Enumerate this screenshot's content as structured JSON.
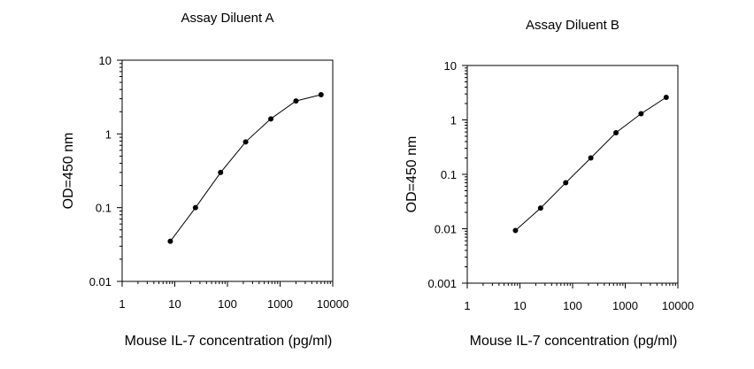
{
  "chart_data": [
    {
      "type": "line",
      "title": "Assay Diluent A",
      "xlabel": "Mouse IL-7 concentration (pg/ml)",
      "ylabel": "OD=450 nm",
      "x_scale": "log",
      "y_scale": "log",
      "xlim": [
        1,
        10000
      ],
      "ylim": [
        0.01,
        10
      ],
      "xticks": [
        1,
        10,
        100,
        1000,
        10000
      ],
      "xtick_labels": [
        "1",
        "10",
        "100",
        "1000",
        "10000"
      ],
      "yticks": [
        0.01,
        0.1,
        1,
        10
      ],
      "ytick_labels": [
        "0.01",
        "0.1",
        "1",
        "10"
      ],
      "grid": false,
      "marker": "circle",
      "series": [
        {
          "x": [
            8.23,
            24.7,
            74.1,
            222,
            667,
            2000,
            6000
          ],
          "y": [
            0.035,
            0.1,
            0.3,
            0.78,
            1.6,
            2.8,
            3.4
          ]
        }
      ]
    },
    {
      "type": "line",
      "title": "Assay Diluent B",
      "xlabel": "Mouse IL-7 concentration (pg/ml)",
      "ylabel": "OD=450 nm",
      "x_scale": "log",
      "y_scale": "log",
      "xlim": [
        1,
        10000
      ],
      "ylim": [
        0.001,
        10
      ],
      "xticks": [
        1,
        10,
        100,
        1000,
        10000
      ],
      "xtick_labels": [
        "1",
        "10",
        "100",
        "1000",
        "10000"
      ],
      "yticks": [
        0.001,
        0.01,
        0.1,
        1,
        10
      ],
      "ytick_labels": [
        "0.001",
        "0.01",
        "0.1",
        "1",
        "10"
      ],
      "grid": false,
      "marker": "circle",
      "series": [
        {
          "x": [
            8.23,
            24.7,
            74.1,
            222,
            667,
            2000,
            6000
          ],
          "y": [
            0.0093,
            0.024,
            0.07,
            0.2,
            0.58,
            1.3,
            2.6
          ]
        }
      ]
    }
  ]
}
